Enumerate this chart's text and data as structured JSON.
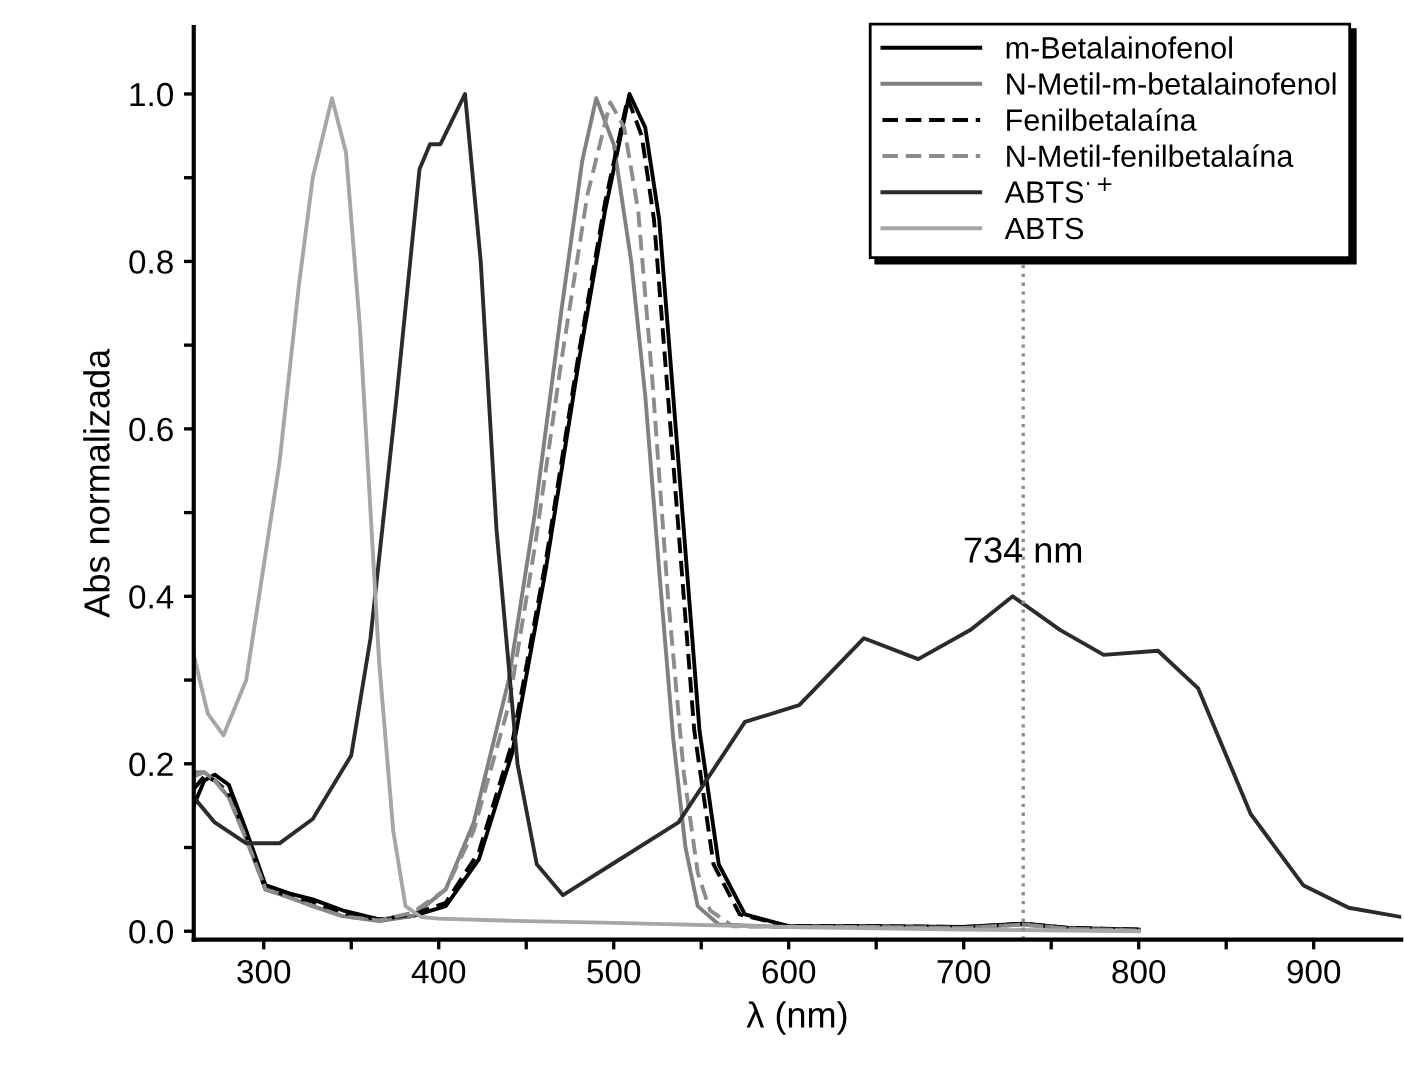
{
  "chart_data": {
    "type": "line",
    "xlabel": "λ (nm)",
    "ylabel": "Abs normalizada",
    "xlim": [
      260,
      950
    ],
    "ylim": [
      -0.01,
      1.08
    ],
    "xticks": [
      300,
      {
        "value": 350,
        "label": null
      },
      400,
      {
        "value": 450,
        "label": null
      },
      500,
      {
        "value": 550,
        "label": null
      },
      600,
      {
        "value": 650,
        "label": null
      },
      700,
      {
        "value": 750,
        "label": null
      },
      800,
      {
        "value": 850,
        "label": null
      },
      900
    ],
    "yticks": [
      {
        "value": 0,
        "label": "0.0"
      },
      {
        "value": 0.1,
        "label": null
      },
      0.2,
      {
        "value": 0.3,
        "label": null
      },
      0.4,
      {
        "value": 0.5,
        "label": null
      },
      0.6,
      {
        "value": 0.7,
        "label": null
      },
      0.8,
      {
        "value": 0.9,
        "label": null
      },
      {
        "value": 1,
        "label": "1.0"
      }
    ],
    "grid": false,
    "legend": "top right",
    "marker": "none",
    "ref_lines": [
      {
        "axis": "x",
        "value": 734,
        "label": "734 nm",
        "color": "#8c8c8c",
        "line_style": "dotted"
      }
    ],
    "series": [
      {
        "name": "m-Betalainofenol",
        "color": "#000000",
        "line_style": "solid",
        "x": [
          260,
          266,
          272,
          280,
          290,
          301,
          315,
          328,
          345,
          366,
          385,
          404,
          423,
          442,
          461,
          480,
          495,
          509,
          518,
          526,
          537,
          549,
          560,
          575,
          600,
          650,
          700,
          734,
          760,
          800
        ],
        "values": [
          0.15,
          0.18,
          0.187,
          0.175,
          0.12,
          0.055,
          0.045,
          0.038,
          0.025,
          0.014,
          0.018,
          0.03,
          0.086,
          0.213,
          0.43,
          0.68,
          0.86,
          1.0,
          0.96,
          0.85,
          0.56,
          0.24,
          0.08,
          0.02,
          0.006,
          0.006,
          0.005,
          0.009,
          0.004,
          0.002
        ]
      },
      {
        "name": "N-Metil-m-betalainofenol",
        "color": "#808080",
        "line_style": "solid",
        "x": [
          260,
          266,
          272,
          280,
          290,
          301,
          315,
          328,
          345,
          366,
          385,
          404,
          420,
          440,
          455,
          470,
          482,
          490,
          500,
          510,
          518,
          526,
          534,
          541,
          548,
          560,
          600,
          650,
          700,
          734,
          760,
          800
        ],
        "values": [
          0.19,
          0.19,
          0.18,
          0.16,
          0.11,
          0.05,
          0.04,
          0.03,
          0.018,
          0.012,
          0.018,
          0.05,
          0.13,
          0.3,
          0.5,
          0.74,
          0.92,
          0.995,
          0.94,
          0.8,
          0.64,
          0.43,
          0.23,
          0.1,
          0.03,
          0.008,
          0.005,
          0.005,
          0.004,
          0.008,
          0.003,
          0.001
        ]
      },
      {
        "name": "Fenilbetalaína",
        "color": "#000000",
        "line_style": "dashed",
        "x": [
          260,
          266,
          272,
          280,
          290,
          301,
          315,
          328,
          345,
          366,
          385,
          404,
          423,
          442,
          461,
          480,
          495,
          508,
          516,
          523,
          534,
          546,
          557,
          572,
          600,
          650,
          700,
          734,
          760,
          800
        ],
        "values": [
          0.17,
          0.185,
          0.18,
          0.165,
          0.115,
          0.05,
          0.042,
          0.035,
          0.022,
          0.014,
          0.02,
          0.034,
          0.095,
          0.225,
          0.44,
          0.69,
          0.87,
          0.995,
          0.95,
          0.85,
          0.56,
          0.24,
          0.08,
          0.02,
          0.006,
          0.006,
          0.005,
          0.009,
          0.004,
          0.002
        ]
      },
      {
        "name": "N-Metil-fenilbetalaína",
        "color": "#8c8c8c",
        "line_style": "dashed",
        "x": [
          260,
          266,
          272,
          280,
          290,
          301,
          315,
          328,
          345,
          366,
          385,
          404,
          420,
          440,
          455,
          470,
          485,
          498,
          506,
          514,
          522,
          531,
          540,
          548,
          555,
          568,
          600,
          650,
          700,
          734,
          760,
          800
        ],
        "values": [
          0.185,
          0.19,
          0.18,
          0.16,
          0.11,
          0.05,
          0.04,
          0.03,
          0.018,
          0.013,
          0.022,
          0.05,
          0.12,
          0.27,
          0.46,
          0.68,
          0.88,
          0.99,
          0.96,
          0.86,
          0.66,
          0.4,
          0.19,
          0.07,
          0.025,
          0.006,
          0.005,
          0.005,
          0.004,
          0.008,
          0.003,
          0.001
        ]
      },
      {
        "name": "ABTS$^{·+}$",
        "color": "#2b2b2b",
        "line_style": "solid",
        "x": [
          260,
          272,
          290,
          309,
          328,
          350,
          361,
          376,
          389,
          395,
          401,
          415,
          424,
          433,
          445,
          456,
          471,
          499,
          537,
          575,
          606,
          643,
          674,
          704,
          728,
          755,
          780,
          811,
          834,
          864,
          894,
          920,
          950
        ],
        "values": [
          0.16,
          0.13,
          0.105,
          0.105,
          0.134,
          0.21,
          0.35,
          0.64,
          0.91,
          0.94,
          0.94,
          1.0,
          0.8,
          0.48,
          0.2,
          0.08,
          0.043,
          0.08,
          0.13,
          0.25,
          0.27,
          0.35,
          0.325,
          0.36,
          0.4,
          0.36,
          0.33,
          0.335,
          0.29,
          0.14,
          0.055,
          0.028,
          0.017
        ]
      },
      {
        "name": "ABTS",
        "color": "#a6a6a6",
        "line_style": "solid",
        "x": [
          260,
          268,
          277,
          290,
          309,
          320,
          328,
          339,
          347,
          355,
          366,
          374,
          381,
          390,
          400,
          450,
          500,
          600,
          700,
          800
        ],
        "values": [
          0.33,
          0.26,
          0.234,
          0.3,
          0.56,
          0.77,
          0.9,
          0.995,
          0.93,
          0.72,
          0.32,
          0.12,
          0.03,
          0.017,
          0.015,
          0.012,
          0.01,
          0.005,
          0.002,
          0.0
        ]
      }
    ]
  }
}
